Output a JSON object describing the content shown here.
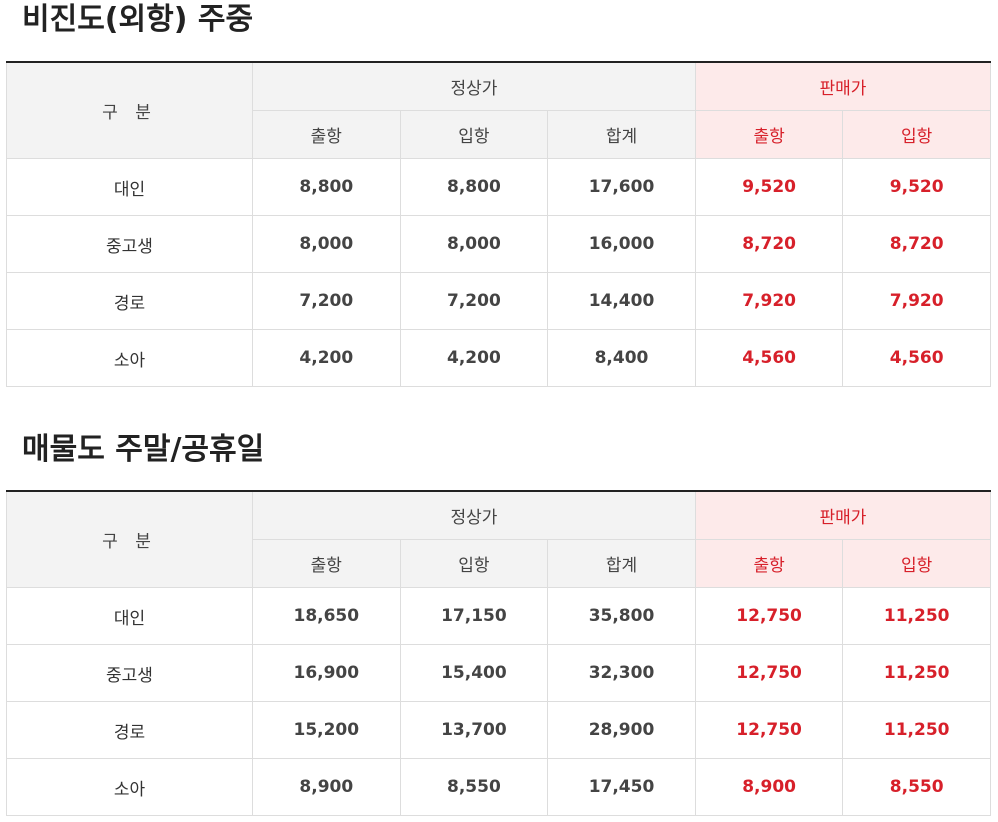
{
  "sections": [
    {
      "title": "비진도(외항) 주중",
      "header": {
        "category": "구 분",
        "regular_group": "정상가",
        "sale_group": "판매가",
        "regular_cols": [
          "출항",
          "입항",
          "합계"
        ],
        "sale_cols": [
          "출항",
          "입항"
        ]
      },
      "rows": [
        {
          "category": "대인",
          "values": [
            "8,800",
            "8,800",
            "17,600",
            "9,520",
            "9,520"
          ]
        },
        {
          "category": "중고생",
          "values": [
            "8,000",
            "8,000",
            "16,000",
            "8,720",
            "8,720"
          ]
        },
        {
          "category": "경로",
          "values": [
            "7,200",
            "7,200",
            "14,400",
            "7,920",
            "7,920"
          ]
        },
        {
          "category": "소아",
          "values": [
            "4,200",
            "4,200",
            "8,400",
            "4,560",
            "4,560"
          ]
        }
      ]
    },
    {
      "title": "매물도 주말/공휴일",
      "header": {
        "category": "구 분",
        "regular_group": "정상가",
        "sale_group": "판매가",
        "regular_cols": [
          "출항",
          "입항",
          "합계"
        ],
        "sale_cols": [
          "출항",
          "입항"
        ]
      },
      "rows": [
        {
          "category": "대인",
          "values": [
            "18,650",
            "17,150",
            "35,800",
            "12,750",
            "11,250"
          ]
        },
        {
          "category": "중고생",
          "values": [
            "16,900",
            "15,400",
            "32,300",
            "12,750",
            "11,250"
          ]
        },
        {
          "category": "경로",
          "values": [
            "15,200",
            "13,700",
            "28,900",
            "12,750",
            "11,250"
          ]
        },
        {
          "category": "소아",
          "values": [
            "8,900",
            "8,550",
            "17,450",
            "8,900",
            "8,550"
          ]
        }
      ]
    }
  ],
  "colors": {
    "sale_text": "#d7202a",
    "sale_header_bg": "#fdeaea",
    "header_bg": "#f3f3f3"
  }
}
